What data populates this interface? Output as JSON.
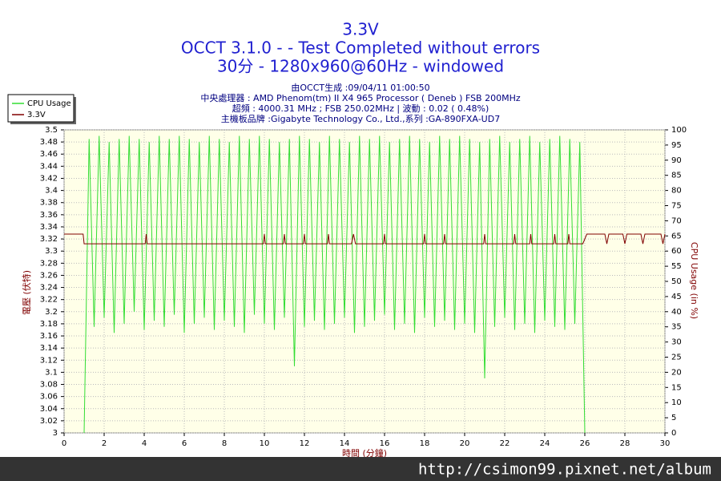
{
  "chart_data": {
    "type": "line",
    "title": "3.3V",
    "subtitle": "OCCT 3.1.0 -  - Test Completed without errors",
    "subtitle2": "30分 - 1280x960@60Hz - windowed",
    "info": [
      "由OCCT生成 :09/04/11 01:00:50",
      "中央處理器 : AMD Phenom(tm) II X4 965 Processor ( Deneb ) FSB 200MHz",
      "超頻 : 4000.31 MHz ; FSB 250.02MHz | 波動 : 0.02 ( 0.48%)",
      "主機板品牌 :Gigabyte Technology Co., Ltd.,系列 :GA-890FXA-UD7"
    ],
    "xlabel": "時間 (分鐘)",
    "ylabel": "電壓 (伏特)",
    "y2label": "CPU Usage (in %)",
    "watermark": "http://csimon99.pixnet.net/album",
    "xlim": [
      0,
      30
    ],
    "xticks": [
      0,
      2,
      4,
      6,
      8,
      10,
      12,
      14,
      16,
      18,
      20,
      22,
      24,
      26,
      28,
      30
    ],
    "ylim": [
      3,
      3.5
    ],
    "yticks": [
      3,
      3.02,
      3.04,
      3.06,
      3.08,
      3.1,
      3.12,
      3.14,
      3.16,
      3.18,
      3.2,
      3.22,
      3.24,
      3.26,
      3.28,
      3.3,
      3.32,
      3.34,
      3.36,
      3.38,
      3.4,
      3.42,
      3.44,
      3.46,
      3.48,
      3.5
    ],
    "y2lim": [
      0,
      100
    ],
    "y2ticks": [
      0,
      5,
      10,
      15,
      20,
      25,
      30,
      35,
      40,
      45,
      50,
      55,
      60,
      65,
      70,
      75,
      80,
      85,
      90,
      95,
      100
    ],
    "grid": true,
    "legend": "top-left",
    "series": [
      {
        "name": "CPU Usage",
        "color": "#33dd33",
        "axis": "y2",
        "x": [
          1,
          1.25,
          1.5,
          1.75,
          2,
          2.25,
          2.5,
          2.75,
          3,
          3.25,
          3.5,
          3.75,
          4,
          4.25,
          4.5,
          4.75,
          5,
          5.25,
          5.5,
          5.75,
          6,
          6.25,
          6.5,
          6.75,
          7,
          7.25,
          7.5,
          7.75,
          8,
          8.25,
          8.5,
          8.75,
          9,
          9.25,
          9.5,
          9.75,
          10,
          10.25,
          10.5,
          10.75,
          11,
          11.25,
          11.5,
          11.75,
          12,
          12.25,
          12.5,
          12.75,
          13,
          13.25,
          13.5,
          13.75,
          14,
          14.25,
          14.5,
          14.75,
          15,
          15.25,
          15.5,
          15.75,
          16,
          16.25,
          16.5,
          16.75,
          17,
          17.25,
          17.5,
          17.75,
          18,
          18.25,
          18.5,
          18.75,
          19,
          19.25,
          19.5,
          19.75,
          20,
          20.25,
          20.5,
          20.75,
          21,
          21.25,
          21.5,
          21.75,
          22,
          22.25,
          22.5,
          22.75,
          23,
          23.25,
          23.5,
          23.75,
          24,
          24.25,
          24.5,
          24.75,
          25,
          25.25,
          25.5,
          25.75,
          26
        ],
        "values": [
          0,
          97,
          35,
          98,
          38,
          96,
          33,
          97,
          36,
          98,
          40,
          97,
          34,
          96,
          37,
          98,
          35,
          97,
          39,
          98,
          33,
          97,
          36,
          96,
          38,
          98,
          34,
          97,
          37,
          96,
          35,
          98,
          33,
          97,
          39,
          98,
          36,
          97,
          34,
          96,
          38,
          97,
          22,
          98,
          35,
          97,
          37,
          96,
          34,
          98,
          36,
          97,
          38,
          96,
          33,
          98,
          35,
          97,
          37,
          98,
          39,
          96,
          34,
          97,
          36,
          98,
          33,
          97,
          38,
          96,
          35,
          98,
          37,
          97,
          34,
          98,
          36,
          97,
          33,
          96,
          18,
          97,
          35,
          98,
          38,
          96,
          34,
          97,
          36,
          98,
          33,
          96,
          37,
          97,
          35,
          98,
          34,
          97,
          36,
          96,
          0
        ]
      },
      {
        "name": "3.3V",
        "color": "#800000",
        "x": [
          0,
          0.95,
          1,
          4.05,
          4.1,
          4.15,
          9.95,
          10,
          10.05,
          10.95,
          11,
          11.05,
          11.95,
          12,
          12.05,
          13.15,
          13.2,
          13.25,
          14.35,
          14.45,
          14.55,
          15.95,
          16,
          16.05,
          17.95,
          18,
          18.05,
          18.95,
          19,
          19.05,
          20.95,
          21,
          21.05,
          22.45,
          22.5,
          22.55,
          23.25,
          23.3,
          23.35,
          24.45,
          24.5,
          24.55,
          25.15,
          25.2,
          25.25,
          25.9,
          26.1,
          27,
          27.1,
          27.2,
          27.9,
          28,
          28.1,
          28.8,
          28.9,
          29,
          29.8,
          29.9,
          30
        ],
        "values": [
          3.328,
          3.328,
          3.312,
          3.312,
          3.328,
          3.312,
          3.312,
          3.328,
          3.312,
          3.312,
          3.328,
          3.312,
          3.312,
          3.328,
          3.312,
          3.312,
          3.328,
          3.312,
          3.312,
          3.328,
          3.312,
          3.312,
          3.328,
          3.312,
          3.312,
          3.328,
          3.312,
          3.312,
          3.328,
          3.312,
          3.312,
          3.328,
          3.312,
          3.312,
          3.328,
          3.312,
          3.312,
          3.328,
          3.312,
          3.312,
          3.328,
          3.312,
          3.312,
          3.328,
          3.312,
          3.312,
          3.328,
          3.328,
          3.312,
          3.328,
          3.328,
          3.312,
          3.328,
          3.328,
          3.312,
          3.328,
          3.328,
          3.312,
          3.328
        ]
      }
    ]
  }
}
